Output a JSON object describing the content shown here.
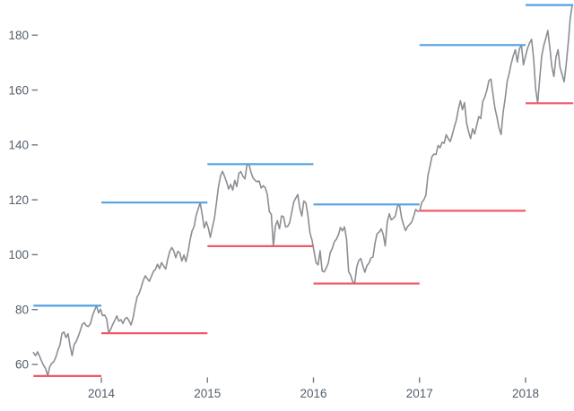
{
  "chart_data": {
    "type": "line",
    "title": "",
    "grid": false,
    "legend": "none",
    "x_axis": {
      "tick_years": [
        2014,
        2015,
        2016,
        2017,
        2018
      ],
      "tick_labels": [
        "2014",
        "2015",
        "2016",
        "2017",
        "2018"
      ],
      "domain_years": [
        2013.36,
        2018.45
      ]
    },
    "y_axis": {
      "tick_values": [
        60,
        80,
        100,
        120,
        140,
        160,
        180
      ],
      "tick_labels": [
        "60",
        "80",
        "100",
        "120",
        "140",
        "160",
        "180"
      ],
      "range": [
        52,
        195
      ]
    },
    "colors": {
      "price_line": "#8b8e93",
      "high_rule": "#54a1e3",
      "low_rule": "#f25968",
      "axis_text": "#525e6b"
    },
    "series": [
      {
        "name": "price",
        "start_year": 2013.36,
        "interval_years": 0.01917,
        "values": [
          64.3,
          63.2,
          64.6,
          63.0,
          61.2,
          59.6,
          58.5,
          55.8,
          59.2,
          60.4,
          61.0,
          62.7,
          65.1,
          67.0,
          71.3,
          71.8,
          69.8,
          71.2,
          66.8,
          63.2,
          67.3,
          68.3,
          70.2,
          72.3,
          74.6,
          75.2,
          74.1,
          73.8,
          74.8,
          77.7,
          79.6,
          81.4,
          78.8,
          80.1,
          77.8,
          78.0,
          76.6,
          71.4,
          72.9,
          74.6,
          76.1,
          77.7,
          75.8,
          76.3,
          74.9,
          76.6,
          77.1,
          75.9,
          74.4,
          77.0,
          81.2,
          84.6,
          85.9,
          88.2,
          90.6,
          92.3,
          91.2,
          90.3,
          92.1,
          93.9,
          94.6,
          96.5,
          94.9,
          97.1,
          95.9,
          94.8,
          98.2,
          101.1,
          102.6,
          101.4,
          98.9,
          101.2,
          100.6,
          97.7,
          99.9,
          97.5,
          100.8,
          105.3,
          108.6,
          110.2,
          114.3,
          116.6,
          119.0,
          114.5,
          109.8,
          112.0,
          109.7,
          106.3,
          110.0,
          113.3,
          118.8,
          124.8,
          128.7,
          130.4,
          128.5,
          126.4,
          123.9,
          125.6,
          123.5,
          127.1,
          124.8,
          129.6,
          130.3,
          128.6,
          127.6,
          132.6,
          133.0,
          130.0,
          128.0,
          127.1,
          126.6,
          126.9,
          124.3,
          125.1,
          124.4,
          122.0,
          115.7,
          114.7,
          103.1,
          110.5,
          112.4,
          109.4,
          114.1,
          113.9,
          110.1,
          110.3,
          111.6,
          115.3,
          119.2,
          120.6,
          121.9,
          116.9,
          114.1,
          119.6,
          118.8,
          114.4,
          107.9,
          105.3,
          101.3,
          97.1,
          96.3,
          101.4,
          94.1,
          93.7,
          95.1,
          96.9,
          100.8,
          102.3,
          104.7,
          105.7,
          107.2,
          109.9,
          108.7,
          110.1,
          105.7,
          93.9,
          92.5,
          90.2,
          89.5,
          95.4,
          97.9,
          98.6,
          95.9,
          93.6,
          96.0,
          96.9,
          98.8,
          99.2,
          104.3,
          107.6,
          108.2,
          109.4,
          107.5,
          103.2,
          111.9,
          114.9,
          112.7,
          113.2,
          114.1,
          117.6,
          118.3,
          113.7,
          110.9,
          108.8,
          110.2,
          111.0,
          111.9,
          113.9,
          116.5,
          115.8,
          116.0,
          119.0,
          120.0,
          121.6,
          128.8,
          132.1,
          135.7,
          136.7,
          136.5,
          139.8,
          139.0,
          141.0,
          140.6,
          143.7,
          142.3,
          141.2,
          143.7,
          146.6,
          149.0,
          153.1,
          156.1,
          152.8,
          155.4,
          148.0,
          144.9,
          142.3,
          145.9,
          144.0,
          147.1,
          150.3,
          149.6,
          155.8,
          157.5,
          159.9,
          163.4,
          164.0,
          158.6,
          153.3,
          150.0,
          146.1,
          143.8,
          151.9,
          156.8,
          163.1,
          166.2,
          169.6,
          172.5,
          174.7,
          170.2,
          175.0,
          176.4,
          169.2,
          172.3,
          175.2,
          177.1,
          178.5,
          171.5,
          160.5,
          155.2,
          164.3,
          172.4,
          176.2,
          178.9,
          181.7,
          175.3,
          168.3,
          164.9,
          172.0,
          174.7,
          168.4,
          165.7,
          163.0,
          169.0,
          176.9,
          186.1,
          191.0
        ]
      }
    ],
    "yearly_rules": [
      {
        "year": "2013",
        "from": 2013.36,
        "to": 2014.0,
        "high": 81.4,
        "low": 55.8
      },
      {
        "year": "2014",
        "from": 2014.0,
        "to": 2015.0,
        "high": 119.0,
        "low": 71.4
      },
      {
        "year": "2015",
        "from": 2015.0,
        "to": 2016.0,
        "high": 133.0,
        "low": 103.1
      },
      {
        "year": "2016",
        "from": 2016.0,
        "to": 2017.0,
        "high": 118.3,
        "low": 89.5
      },
      {
        "year": "2017",
        "from": 2017.0,
        "to": 2018.0,
        "high": 176.4,
        "low": 116.0
      },
      {
        "year": "2018",
        "from": 2018.0,
        "to": 2018.45,
        "high": 191.0,
        "low": 155.2
      }
    ]
  }
}
